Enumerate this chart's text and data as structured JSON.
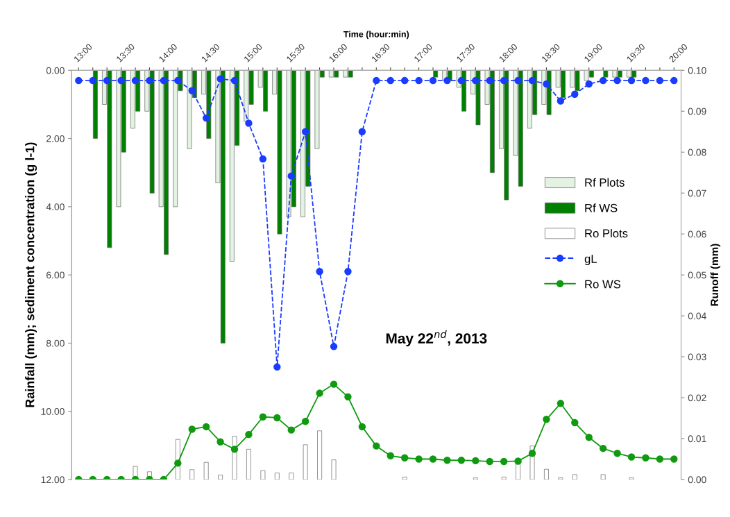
{
  "chart_data": {
    "type": "bar",
    "xlabel": "Time (hour:min)",
    "ylabel": "Rainfall (mm); sediment concentration (g l-1)",
    "y2label": "Runoff (mm)",
    "annotations": [
      "May 22$^{nd}$, 2013"
    ],
    "categories": [
      "13:00",
      null,
      null,
      "13:30",
      null,
      null,
      "14:00",
      null,
      null,
      "14:30",
      null,
      null,
      "15:00",
      null,
      null,
      "15:30",
      null,
      null,
      "16:00",
      null,
      null,
      "16:30",
      null,
      null,
      "17:00",
      null,
      null,
      "17:30",
      null,
      null,
      "18:00",
      null,
      null,
      "18:30",
      null,
      null,
      "19:00",
      null,
      null,
      "19:30",
      null,
      null,
      "20:00"
    ],
    "ylim": [
      12,
      0
    ],
    "yticks": [
      {
        "value": 0,
        "label": "0.00"
      },
      {
        "value": 2,
        "label": "2.00"
      },
      {
        "value": 4,
        "label": "4.00"
      },
      {
        "value": 6,
        "label": "6.00"
      },
      {
        "value": 8,
        "label": "8.00"
      },
      {
        "value": 10,
        "label": "10.00"
      },
      {
        "value": 12,
        "label": "12.00"
      }
    ],
    "y2lim": [
      0,
      0.1
    ],
    "y2ticks": [
      {
        "value": 0,
        "label": "0.00"
      },
      {
        "value": 0.01,
        "label": "0.01"
      },
      {
        "value": 0.02,
        "label": "0.02"
      },
      {
        "value": 0.03,
        "label": "0.03"
      },
      {
        "value": 0.04,
        "label": "0.04"
      },
      {
        "value": 0.05,
        "label": "0.05"
      },
      {
        "value": 0.06,
        "label": "0.06"
      },
      {
        "value": 0.07,
        "label": "0.07"
      },
      {
        "value": 0.08,
        "label": "0.08"
      },
      {
        "value": 0.09,
        "label": "0.09"
      },
      {
        "value": 0.1,
        "label": "0.10"
      }
    ],
    "grid": false,
    "legend": "right",
    "series": [
      {
        "name": "Rf Plots",
        "color": "#e4f2e4",
        "values": [
          null,
          null,
          1.0,
          4.0,
          1.7,
          1.2,
          4.0,
          4.0,
          2.3,
          0.7,
          3.3,
          5.6,
          1.5,
          0.5,
          0.7,
          4.3,
          4.3,
          2.3,
          0.2,
          0.2,
          null,
          null,
          null,
          null,
          null,
          null,
          0.3,
          0.5,
          0.7,
          1.0,
          2.3,
          2.5,
          1.7,
          1.0,
          0.5,
          0.5,
          0.3,
          null,
          0.2,
          0.2,
          null,
          null,
          null
        ]
      },
      {
        "name": "Rf WS",
        "color": "#008000",
        "values": [
          null,
          2.0,
          5.2,
          2.4,
          1.2,
          3.6,
          5.4,
          0.6,
          0.8,
          2.0,
          8.0,
          2.2,
          1.0,
          1.2,
          4.8,
          4.0,
          3.4,
          0.2,
          0.2,
          0.2,
          null,
          null,
          null,
          null,
          null,
          0.2,
          0.3,
          1.2,
          1.6,
          3.0,
          3.8,
          3.4,
          1.3,
          1.3,
          0.8,
          0.6,
          0.2,
          0.2,
          0.2,
          0.2,
          null,
          null,
          null
        ]
      },
      {
        "name": "Ro Plots",
        "axis": "y2",
        "color": "#ffffff",
        "values": [
          null,
          null,
          null,
          null,
          0.0032,
          0.0019,
          null,
          0.0098,
          0.0024,
          0.0042,
          0.0011,
          0.0106,
          0.0074,
          0.0022,
          0.0016,
          0.0016,
          0.0085,
          0.0119,
          0.0048,
          null,
          null,
          null,
          null,
          0.0006,
          null,
          null,
          null,
          null,
          0.0004,
          null,
          0.0006,
          0.004,
          0.0082,
          0.0025,
          0.0004,
          0.0012,
          null,
          0.0012,
          null,
          0.0004,
          null,
          null,
          null
        ]
      },
      {
        "name": "gL",
        "type": "line",
        "color": "#1a3cff",
        "marker": "circle",
        "line_style": "dashed",
        "values": [
          0.3,
          0.3,
          0.3,
          0.3,
          0.3,
          0.3,
          0.3,
          0.3,
          0.6,
          1.4,
          0.25,
          0.3,
          1.55,
          2.6,
          8.7,
          3.1,
          1.8,
          5.9,
          8.1,
          5.9,
          1.8,
          0.3,
          0.3,
          0.3,
          0.3,
          0.3,
          0.3,
          0.3,
          0.3,
          0.3,
          0.3,
          0.3,
          0.3,
          0.4,
          0.9,
          0.7,
          0.4,
          0.3,
          0.3,
          0.3,
          0.3,
          0.3,
          0.3
        ]
      },
      {
        "name": "Ro WS",
        "type": "line",
        "axis": "y2",
        "color": "#109a10",
        "marker": "circle",
        "line_style": "solid",
        "values": [
          0,
          0,
          0,
          0,
          0,
          0,
          0,
          0.004,
          0.0123,
          0.0129,
          0.0092,
          0.0074,
          0.011,
          0.0153,
          0.0151,
          0.0121,
          0.0142,
          0.0211,
          0.0233,
          0.0202,
          0.0129,
          0.0082,
          0.0058,
          0.0053,
          0.005,
          0.005,
          0.0047,
          0.0047,
          0.0046,
          0.0044,
          0.0044,
          0.0045,
          0.0064,
          0.0147,
          0.0186,
          0.0139,
          0.0103,
          0.0076,
          0.0064,
          0.0055,
          0.0053,
          0.005,
          0.005
        ]
      }
    ]
  }
}
